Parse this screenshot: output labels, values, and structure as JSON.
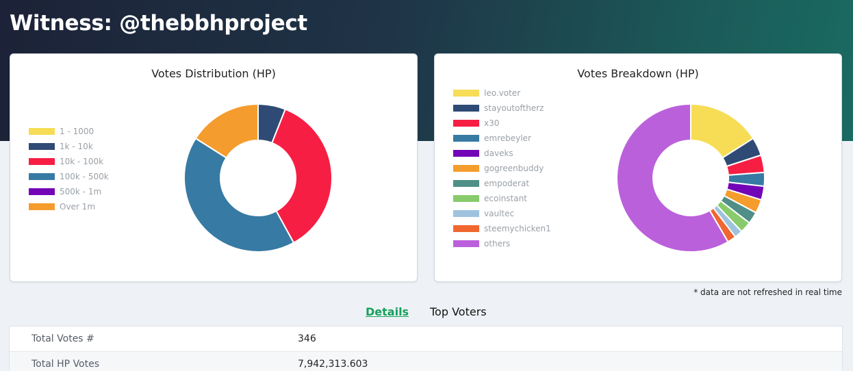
{
  "header": {
    "title": "Witness: @thebbhproject"
  },
  "charts": {
    "distribution": {
      "title": "Votes Distribution (HP)",
      "legend": [
        {
          "label": "1 - 1000",
          "color": "#f6dd55"
        },
        {
          "label": "1k - 10k",
          "color": "#2f4b75"
        },
        {
          "label": "10k - 100k",
          "color": "#f71e44"
        },
        {
          "label": "100k - 500k",
          "color": "#377aa3"
        },
        {
          "label": "500k - 1m",
          "color": "#7205b6"
        },
        {
          "label": "Over 1m",
          "color": "#f59c2e"
        }
      ]
    },
    "breakdown": {
      "title": "Votes Breakdown (HP)",
      "legend": [
        {
          "label": "leo.voter",
          "color": "#f6dd55"
        },
        {
          "label": "stayoutoftherz",
          "color": "#2f4b75"
        },
        {
          "label": "x30",
          "color": "#f71e44"
        },
        {
          "label": "emrebeyler",
          "color": "#377aa3"
        },
        {
          "label": "daveks",
          "color": "#7205b6"
        },
        {
          "label": "gogreenbuddy",
          "color": "#f59c2e"
        },
        {
          "label": "empoderat",
          "color": "#4f8f87"
        },
        {
          "label": "ecoinstant",
          "color": "#89cb6c"
        },
        {
          "label": "vaultec",
          "color": "#9fc3de"
        },
        {
          "label": "steemychicken1",
          "color": "#f06730"
        },
        {
          "label": "others",
          "color": "#bb60db"
        }
      ]
    }
  },
  "chart_data": [
    {
      "type": "pie",
      "title": "Votes Distribution (HP)",
      "categories": [
        "1 - 1000",
        "1k - 10k",
        "10k - 100k",
        "100k - 500k",
        "500k - 1m",
        "Over 1m"
      ],
      "values": [
        0,
        6,
        36,
        42,
        0,
        16
      ],
      "colors": [
        "#f6dd55",
        "#2f4b75",
        "#f71e44",
        "#377aa3",
        "#7205b6",
        "#f59c2e"
      ],
      "legend_position": "left"
    },
    {
      "type": "pie",
      "title": "Votes Breakdown (HP)",
      "categories": [
        "leo.voter",
        "stayoutoftherz",
        "x30",
        "emrebeyler",
        "daveks",
        "gogreenbuddy",
        "empoderat",
        "ecoinstant",
        "vaultec",
        "steemychicken1",
        "others"
      ],
      "values": [
        16,
        4,
        3.8,
        3,
        3,
        3,
        2.6,
        2.5,
        1.8,
        1.9,
        58.4
      ],
      "colors": [
        "#f6dd55",
        "#2f4b75",
        "#f71e44",
        "#377aa3",
        "#7205b6",
        "#f59c2e",
        "#4f8f87",
        "#89cb6c",
        "#9fc3de",
        "#f06730",
        "#bb60db"
      ],
      "legend_position": "left"
    }
  ],
  "note": "* data are not refreshed in real time",
  "tabs": {
    "details": "Details",
    "top_voters": "Top Voters"
  },
  "details": {
    "rows": [
      {
        "label": "Total Votes #",
        "value": "346"
      },
      {
        "label": "Total HP Votes",
        "value": "7,942,313.603"
      }
    ]
  }
}
